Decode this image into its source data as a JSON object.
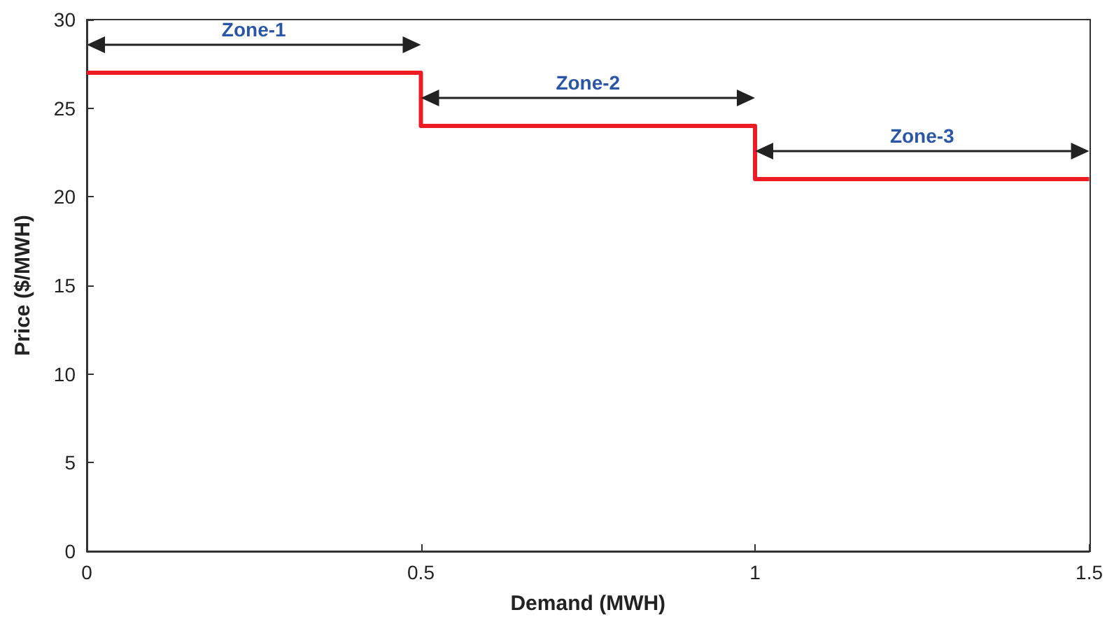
{
  "chart_data": {
    "type": "step",
    "xlabel": "Demand (MWH)",
    "ylabel": "Price ($/MWH)",
    "x": [
      0,
      0.5,
      1,
      1.5
    ],
    "series": [
      {
        "color": "#ed1c24",
        "values": [
          27,
          24,
          21,
          21
        ]
      }
    ],
    "xlim": [
      0,
      1.5
    ],
    "xticks": [
      0,
      0.5,
      1,
      1.5
    ],
    "ylim": [
      0,
      30
    ],
    "yticks": [
      0,
      5,
      10,
      15,
      20,
      25,
      30
    ],
    "grid": false,
    "marker": "none",
    "line_style": "solid",
    "annotations": [
      "Zone-1",
      "Zone-2",
      "Zone-3"
    ]
  }
}
